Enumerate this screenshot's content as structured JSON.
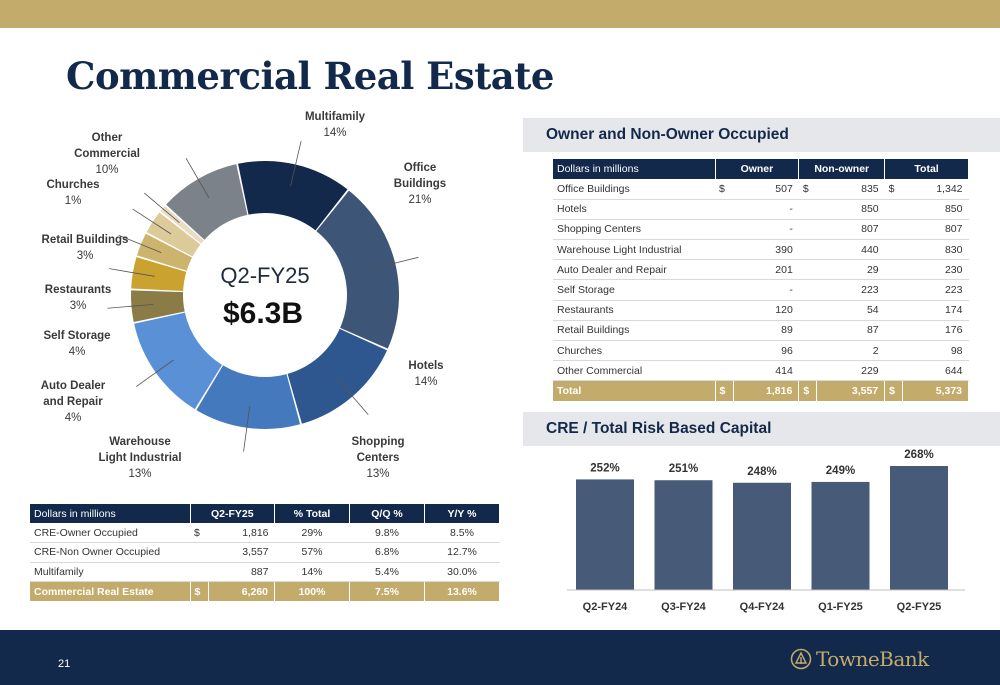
{
  "title": "Commercial Real Estate",
  "page_number": "21",
  "logo_text": "TowneBank",
  "colors": {
    "navy": "#13294b",
    "gold": "#c3ab6b",
    "header_gray": "#e6e7ea"
  },
  "donut": {
    "center_label": "Q2-FY25",
    "center_value": "$6.3B",
    "slices": [
      {
        "label_lines": [
          "Multifamily"
        ],
        "pct": "14%",
        "color": "#13294b"
      },
      {
        "label_lines": [
          "Office",
          "Buildings"
        ],
        "pct": "21%",
        "color": "#3d5677"
      },
      {
        "label_lines": [
          "Hotels"
        ],
        "pct": "14%",
        "color": "#2e5790"
      },
      {
        "label_lines": [
          "Shopping",
          "Centers"
        ],
        "pct": "13%",
        "color": "#4579bd"
      },
      {
        "label_lines": [
          "Warehouse",
          "Light Industrial"
        ],
        "pct": "13%",
        "color": "#5a90d6"
      },
      {
        "label_lines": [
          "Auto Dealer",
          "and Repair"
        ],
        "pct": "4%",
        "color": "#8a7b47"
      },
      {
        "label_lines": [
          "Self Storage"
        ],
        "pct": "4%",
        "color": "#c9a22f"
      },
      {
        "label_lines": [
          "Restaurants"
        ],
        "pct": "3%",
        "color": "#cdb46e"
      },
      {
        "label_lines": [
          "Retail Buildings"
        ],
        "pct": "3%",
        "color": "#dccb98"
      },
      {
        "label_lines": [
          "Churches"
        ],
        "pct": "1%",
        "color": "#e8ddc0"
      },
      {
        "label_lines": [
          "Other",
          "Commercial"
        ],
        "pct": "10%",
        "color": "#7c828a"
      }
    ]
  },
  "cre_table": {
    "headers": [
      "Dollars in millions",
      "Q2-FY25",
      "% Total",
      "Q/Q %",
      "Y/Y %"
    ],
    "rows": [
      {
        "name": "CRE-Owner Occupied",
        "dollar": "$",
        "value": "1,816",
        "pct_total": "29%",
        "qq": "9.8%",
        "yy": "8.5%"
      },
      {
        "name": "CRE-Non Owner Occupied",
        "dollar": "",
        "value": "3,557",
        "pct_total": "57%",
        "qq": "6.8%",
        "yy": "12.7%"
      },
      {
        "name": "Multifamily",
        "dollar": "",
        "value": "887",
        "pct_total": "14%",
        "qq": "5.4%",
        "yy": "30.0%"
      }
    ],
    "total": {
      "name": "Commercial Real Estate",
      "dollar": "$",
      "value": "6,260",
      "pct_total": "100%",
      "qq": "7.5%",
      "yy": "13.6%"
    }
  },
  "owner_section": {
    "title": "Owner and Non-Owner Occupied",
    "headers": [
      "Dollars in millions",
      "Owner",
      "Non-owner",
      "Total"
    ],
    "rows": [
      {
        "name": "Office Buildings",
        "d1": "$",
        "owner": "507",
        "d2": "$",
        "non_owner": "835",
        "d3": "$",
        "total": "1,342"
      },
      {
        "name": "Hotels",
        "d1": "",
        "owner": "-",
        "d2": "",
        "non_owner": "850",
        "d3": "",
        "total": "850"
      },
      {
        "name": "Shopping Centers",
        "d1": "",
        "owner": "-",
        "d2": "",
        "non_owner": "807",
        "d3": "",
        "total": "807"
      },
      {
        "name": "Warehouse Light Industrial",
        "d1": "",
        "owner": "390",
        "d2": "",
        "non_owner": "440",
        "d3": "",
        "total": "830"
      },
      {
        "name": "Auto Dealer and Repair",
        "d1": "",
        "owner": "201",
        "d2": "",
        "non_owner": "29",
        "d3": "",
        "total": "230"
      },
      {
        "name": "Self Storage",
        "d1": "",
        "owner": "-",
        "d2": "",
        "non_owner": "223",
        "d3": "",
        "total": "223"
      },
      {
        "name": "Restaurants",
        "d1": "",
        "owner": "120",
        "d2": "",
        "non_owner": "54",
        "d3": "",
        "total": "174"
      },
      {
        "name": "Retail Buildings",
        "d1": "",
        "owner": "89",
        "d2": "",
        "non_owner": "87",
        "d3": "",
        "total": "176"
      },
      {
        "name": "Churches",
        "d1": "",
        "owner": "96",
        "d2": "",
        "non_owner": "2",
        "d3": "",
        "total": "98"
      },
      {
        "name": "Other Commercial",
        "d1": "",
        "owner": "414",
        "d2": "",
        "non_owner": "229",
        "d3": "",
        "total": "644"
      }
    ],
    "total": {
      "name": "Total",
      "d1": "$",
      "owner": "1,816",
      "d2": "$",
      "non_owner": "3,557",
      "d3": "$",
      "total": "5,373"
    }
  },
  "capital_section": {
    "title": "CRE / Total Risk Based Capital"
  },
  "chart_data": [
    {
      "type": "pie",
      "title": "",
      "center_text": [
        "Q2-FY25",
        "$6.3B"
      ],
      "categories": [
        "Multifamily",
        "Office Buildings",
        "Hotels",
        "Shopping Centers",
        "Warehouse Light Industrial",
        "Auto Dealer and Repair",
        "Self Storage",
        "Restaurants",
        "Retail Buildings",
        "Churches",
        "Other Commercial"
      ],
      "values": [
        14,
        21,
        14,
        13,
        13,
        4,
        4,
        3,
        3,
        1,
        10
      ]
    },
    {
      "type": "bar",
      "title": "CRE / Total Risk Based Capital",
      "categories": [
        "Q2-FY24",
        "Q3-FY24",
        "Q4-FY24",
        "Q1-FY25",
        "Q2-FY25"
      ],
      "values": [
        252,
        251,
        248,
        249,
        268
      ],
      "labels": [
        "252%",
        "251%",
        "248%",
        "249%",
        "268%"
      ],
      "color": "#475a78",
      "xlabel": "",
      "ylabel": ""
    }
  ]
}
